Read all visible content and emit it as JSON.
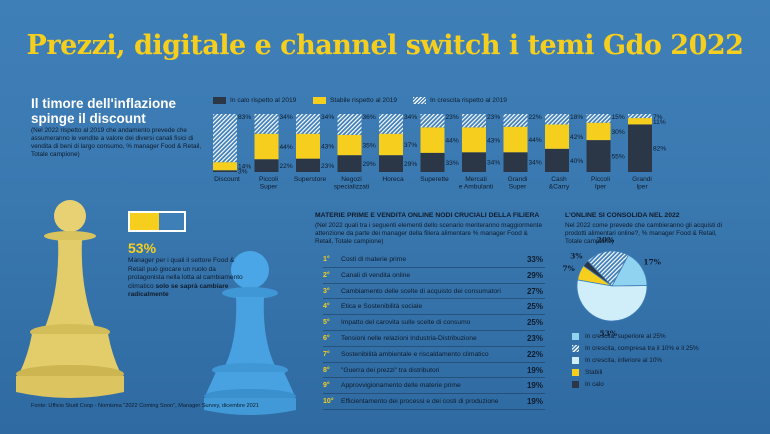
{
  "header": {
    "title": "Prezzi, digitale e channel switch i temi Gdo 2022"
  },
  "colors": {
    "background": "#3f7fb8",
    "accent_yellow": "#f6cf1e",
    "dark": "#2b3646",
    "light_blue": "#8fd3f1",
    "ice_blue": "#cfeefa"
  },
  "icons": {
    "yellow_pawn": "yellow-pawn-icon",
    "blue_pawn": "blue-pawn-icon"
  },
  "inflation": {
    "title": "Il timore dell'inflazione spinge il discount",
    "subtitle": "(Nel 2022 rispetto al 2019 che andamento prevede che assumeranno le vendite a valore dei diversi canali fisici di vendita di beni di largo consumo, % manager Food & Retail, Totale campione)"
  },
  "pawn": {
    "percent": "53%",
    "value": 0.53,
    "text_plain": "Manager per i quali il settore Food & Retail può giocare un ruolo da protagonista nella lotta al cambiamento climatico",
    "text_bold": "solo se saprà cambiare radicalmente"
  },
  "materie_prime": {
    "title": "MATERIE PRIME E VENDITA ONLINE NODI CRUCIALI DELLA FILIERA",
    "subtitle": "(Nel 2022 quali tra i seguenti elementi dello scenario meriteranno maggiormente attenzione da parte dei manager della filiera alimentare % manager Food & Retail, Totale campione)",
    "items": [
      {
        "rank": "1°",
        "label": "Costi di materie prime",
        "value": "33%"
      },
      {
        "rank": "2°",
        "label": "Canali di vendita online",
        "value": "29%"
      },
      {
        "rank": "3°",
        "label": "Cambiamento delle scelte di acquisto dei consumatori",
        "value": "27%"
      },
      {
        "rank": "4°",
        "label": "Etica e Sostenibilità sociale",
        "value": "25%"
      },
      {
        "rank": "5°",
        "label": "Impatto del carovita sulle scelte di consumo",
        "value": "25%"
      },
      {
        "rank": "6°",
        "label": "Tensioni nelle relazioni Industria-Distribuzione",
        "value": "23%"
      },
      {
        "rank": "7°",
        "label": "Sostenibilità ambientale e riscaldamento climatico",
        "value": "22%"
      },
      {
        "rank": "8°",
        "label": "\"Guerra dei prezzi\" tra distributori",
        "value": "19%"
      },
      {
        "rank": "9°",
        "label": "Approvvigionamento delle materie prime",
        "value": "19%"
      },
      {
        "rank": "10°",
        "label": "Efficientamento dei processi e dei costi di produzione",
        "value": "19%"
      }
    ]
  },
  "online": {
    "title": "L'ONLINE SI CONSOLIDA NEL 2022",
    "subtitle": "Nel 2022 come prevede che cambieranno gli acquisti di prodotti alimentari online?, % manager Food & Retail, Totale campione)"
  },
  "source": "Fonte: Ufficio Studi Coop - Nomisma \"2022 Coming Soon\", Manager Survey, dicembre 2021",
  "chart_data": [
    {
      "type": "bar",
      "stacked": true,
      "categories": [
        "Discount",
        "Piccoli Super",
        "Superstore",
        "Negozi specializzati",
        "Horeca",
        "Superette",
        "Mercati e Ambulanti",
        "Grandi Super",
        "Cash &Carry",
        "Piccoli Iper",
        "Grandi Iper"
      ],
      "series": [
        {
          "name": "In calo rispetto al 2019",
          "values": [
            3,
            22,
            23,
            29,
            29,
            33,
            34,
            34,
            40,
            55,
            82
          ]
        },
        {
          "name": "Stabile rispetto al 2019",
          "values": [
            14,
            44,
            43,
            35,
            37,
            44,
            43,
            44,
            42,
            30,
            11
          ]
        },
        {
          "name": "In crescita rispetto al 2019",
          "values": [
            83,
            34,
            34,
            36,
            34,
            23,
            23,
            22,
            18,
            15,
            7
          ]
        }
      ],
      "labels": {
        "down": [
          "3%",
          "22%",
          "23%",
          "29%",
          "29%",
          "33%",
          "34%",
          "34%",
          "40%",
          "55%",
          "82%"
        ],
        "stable": [
          "14%",
          "44%",
          "43%",
          "35%",
          "37%",
          "44%",
          "43%",
          "44%",
          "42%",
          "30%",
          "11%"
        ],
        "up": [
          "83%",
          "34%",
          "34%",
          "36%",
          "34%",
          "23%",
          "23%",
          "22%",
          "18%",
          "15%",
          "7%"
        ]
      },
      "ylim": [
        0,
        100
      ],
      "legend": "top",
      "colors": [
        "#2b3646",
        "#f6cf1e",
        "hatch"
      ]
    },
    {
      "type": "pie",
      "slices": [
        {
          "name": "In crescita, superiore al 25%",
          "value": 17,
          "label": "17%",
          "color": "#8fd3f1"
        },
        {
          "name": "In crescita, compresa tra il 10% e il 25%",
          "value": 20,
          "label": "20%",
          "color": "hatch"
        },
        {
          "name": "In crescita, inferiore al 10%",
          "value": 53,
          "label": "53%",
          "color": "#cfeefa"
        },
        {
          "name": "Stabili",
          "value": 7,
          "label": "7%",
          "color": "#f6cf1e"
        },
        {
          "name": "In calo",
          "value": 3,
          "label": "3%",
          "color": "#2b3646"
        }
      ],
      "legend": "bottom"
    }
  ]
}
